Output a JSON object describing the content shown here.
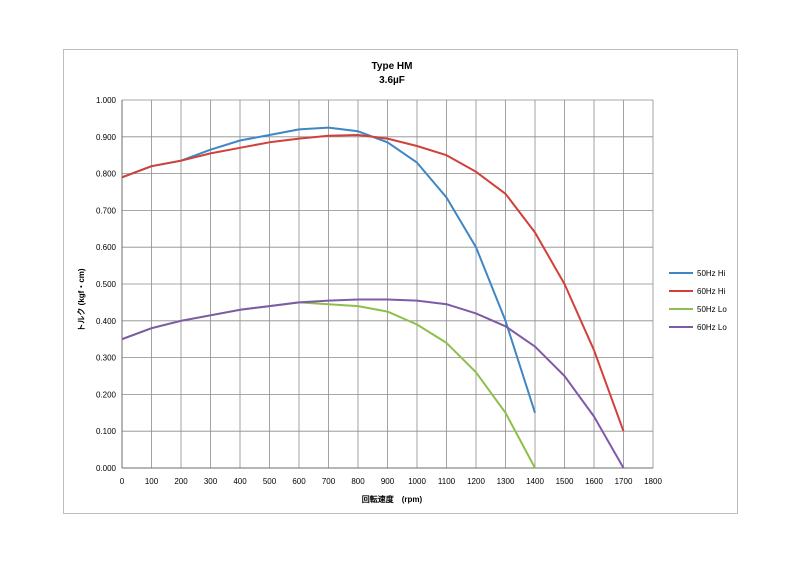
{
  "chart_data": {
    "type": "line",
    "title": "Type HM",
    "subtitle": "3.6µF",
    "xlabel": "回転速度　(rpm)",
    "ylabel": "トルク (kgf・cm)",
    "xlim": [
      0,
      1800
    ],
    "ylim": [
      0,
      1.0
    ],
    "x_ticks": [
      "0",
      "100",
      "200",
      "300",
      "400",
      "500",
      "600",
      "700",
      "800",
      "900",
      "1000",
      "1100",
      "1200",
      "1300",
      "1400",
      "1500",
      "1600",
      "1700",
      "1800"
    ],
    "y_ticks": [
      "0.000",
      "0.100",
      "0.200",
      "0.300",
      "0.400",
      "0.500",
      "0.600",
      "0.700",
      "0.800",
      "0.900",
      "1.000"
    ],
    "grid": true,
    "legend_position": "right",
    "series": [
      {
        "name": "50Hz Hi",
        "color": "#3f86c4",
        "x": [
          0,
          100,
          200,
          300,
          400,
          500,
          600,
          700,
          800,
          900,
          1000,
          1100,
          1200,
          1300,
          1400
        ],
        "y": [
          0.79,
          0.82,
          0.835,
          0.865,
          0.89,
          0.905,
          0.92,
          0.925,
          0.915,
          0.885,
          0.83,
          0.735,
          0.6,
          0.4,
          0.15
        ]
      },
      {
        "name": "60Hz Hi",
        "color": "#d2403a",
        "x": [
          0,
          100,
          200,
          300,
          400,
          500,
          600,
          700,
          800,
          900,
          1000,
          1100,
          1200,
          1300,
          1400,
          1500,
          1600,
          1700
        ],
        "y": [
          0.79,
          0.82,
          0.835,
          0.855,
          0.87,
          0.885,
          0.895,
          0.903,
          0.905,
          0.895,
          0.875,
          0.85,
          0.805,
          0.745,
          0.64,
          0.5,
          0.32,
          0.1
        ]
      },
      {
        "name": "50Hz Lo",
        "color": "#8cc04a",
        "x": [
          0,
          100,
          200,
          300,
          400,
          500,
          600,
          700,
          800,
          900,
          1000,
          1100,
          1200,
          1300,
          1400
        ],
        "y": [
          0.35,
          0.38,
          0.4,
          0.415,
          0.43,
          0.44,
          0.45,
          0.445,
          0.44,
          0.425,
          0.39,
          0.34,
          0.26,
          0.15,
          0.0
        ]
      },
      {
        "name": "60Hz Lo",
        "color": "#7e5aa8",
        "x": [
          0,
          100,
          200,
          300,
          400,
          500,
          600,
          700,
          800,
          900,
          1000,
          1100,
          1200,
          1300,
          1400,
          1500,
          1600,
          1700
        ],
        "y": [
          0.35,
          0.38,
          0.4,
          0.415,
          0.43,
          0.44,
          0.45,
          0.455,
          0.458,
          0.458,
          0.455,
          0.445,
          0.42,
          0.385,
          0.33,
          0.25,
          0.14,
          0.0
        ]
      }
    ]
  }
}
